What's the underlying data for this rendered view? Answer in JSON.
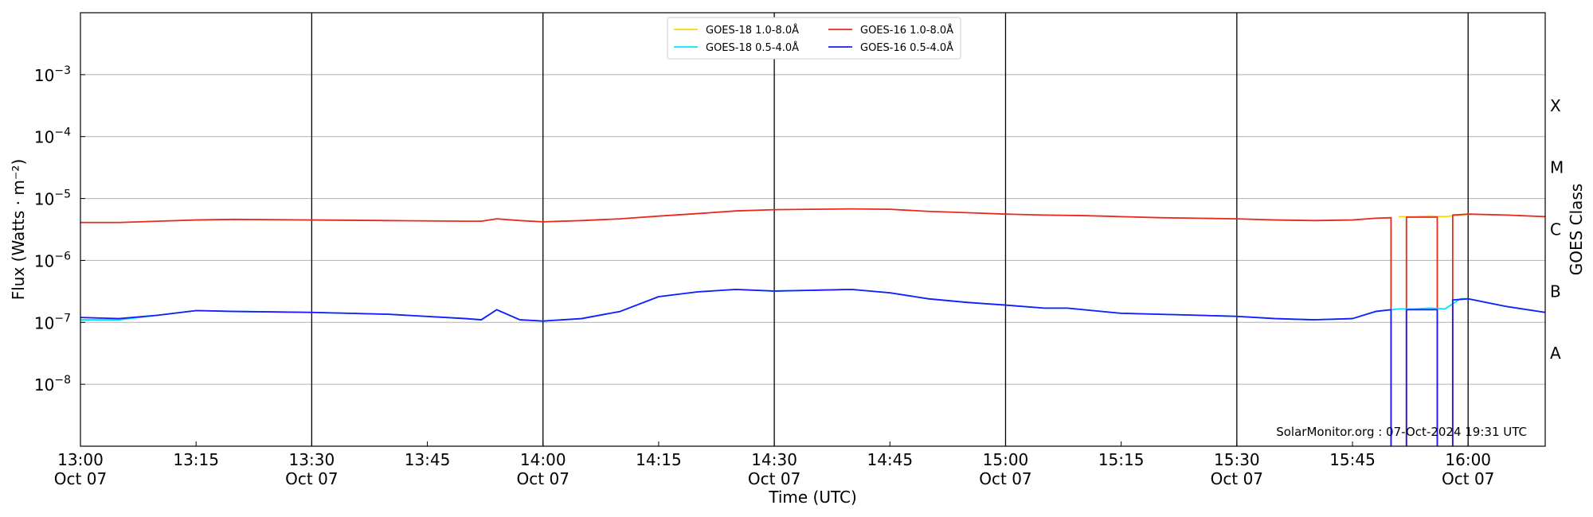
{
  "chart_data": {
    "type": "line",
    "xlabel": "Time (UTC)",
    "ylabel": "Flux (Watts · m⁻²)",
    "y2label": "GOES Class",
    "credit": "SolarMonitor.org : 07-Oct-2024 19:31 UTC",
    "y_scale": "log",
    "ylim": [
      1e-09,
      0.01
    ],
    "xlim": [
      "13:00",
      "16:10"
    ],
    "grid": "horizontal",
    "legend_position": "top-center",
    "x_ticks": [
      {
        "time": "13:00",
        "line1": "13:00",
        "line2": "Oct 07"
      },
      {
        "time": "13:15",
        "line1": "13:15",
        "line2": ""
      },
      {
        "time": "13:30",
        "line1": "13:30",
        "line2": "Oct 07"
      },
      {
        "time": "13:45",
        "line1": "13:45",
        "line2": ""
      },
      {
        "time": "14:00",
        "line1": "14:00",
        "line2": "Oct 07"
      },
      {
        "time": "14:15",
        "line1": "14:15",
        "line2": ""
      },
      {
        "time": "14:30",
        "line1": "14:30",
        "line2": "Oct 07"
      },
      {
        "time": "14:45",
        "line1": "14:45",
        "line2": ""
      },
      {
        "time": "15:00",
        "line1": "15:00",
        "line2": "Oct 07"
      },
      {
        "time": "15:15",
        "line1": "15:15",
        "line2": ""
      },
      {
        "time": "15:30",
        "line1": "15:30",
        "line2": "Oct 07"
      },
      {
        "time": "15:45",
        "line1": "15:45",
        "line2": ""
      },
      {
        "time": "16:00",
        "line1": "16:00",
        "line2": "Oct 07"
      }
    ],
    "vertical_lines": [
      "13:30",
      "14:00",
      "14:30",
      "15:00",
      "15:30",
      "16:00"
    ],
    "y_ticks": [
      {
        "exp": -8,
        "label": "10",
        "sup": "−8"
      },
      {
        "exp": -7,
        "label": "10",
        "sup": "−7"
      },
      {
        "exp": -6,
        "label": "10",
        "sup": "−6"
      },
      {
        "exp": -5,
        "label": "10",
        "sup": "−5"
      },
      {
        "exp": -4,
        "label": "10",
        "sup": "−4"
      },
      {
        "exp": -3,
        "label": "10",
        "sup": "−3"
      }
    ],
    "goes_classes": [
      {
        "label": "A",
        "exp": -7.5
      },
      {
        "label": "B",
        "exp": -6.5
      },
      {
        "label": "C",
        "exp": -5.5
      },
      {
        "label": "M",
        "exp": -4.5
      },
      {
        "label": "X",
        "exp": -3.5
      }
    ],
    "series": [
      {
        "name": "GOES-18 1.0-8.0Å",
        "color": "#ffd700",
        "x": [
          "15:51",
          "15:53",
          "15:55",
          "15:57",
          "15:59",
          "16:00"
        ],
        "values": [
          5.1e-06,
          5.1e-06,
          5.2e-06,
          5.1e-06,
          5.4e-06,
          5.6e-06
        ]
      },
      {
        "name": "GOES-16 1.0-8.0Å",
        "color": "#e8291c",
        "x": [
          "13:00",
          "13:05",
          "13:10",
          "13:15",
          "13:20",
          "13:30",
          "13:40",
          "13:50",
          "13:52",
          "13:54",
          "13:57",
          "14:00",
          "14:05",
          "14:10",
          "14:15",
          "14:20",
          "14:25",
          "14:30",
          "14:35",
          "14:40",
          "14:45",
          "14:50",
          "14:55",
          "15:00",
          "15:05",
          "15:10",
          "15:15",
          "15:20",
          "15:25",
          "15:30",
          "15:35",
          "15:40",
          "15:45",
          "15:48",
          "15:50",
          "15:50",
          "15:50",
          "15:52",
          "15:52",
          "15:52",
          "15:54",
          "15:56",
          "15:56",
          "15:56",
          "15:58",
          "15:58",
          "15:58",
          "16:00",
          "16:05",
          "16:10"
        ],
        "values": [
          4.1e-06,
          4.1e-06,
          4.3e-06,
          4.5e-06,
          4.6e-06,
          4.5e-06,
          4.4e-06,
          4.3e-06,
          4.3e-06,
          4.7e-06,
          4.4e-06,
          4.2e-06,
          4.4e-06,
          4.7e-06,
          5.2e-06,
          5.7e-06,
          6.3e-06,
          6.6e-06,
          6.7e-06,
          6.8e-06,
          6.7e-06,
          6.2e-06,
          5.9e-06,
          5.6e-06,
          5.4e-06,
          5.3e-06,
          5.1e-06,
          4.9e-06,
          4.8e-06,
          4.7e-06,
          4.5e-06,
          4.4e-06,
          4.5e-06,
          4.8e-06,
          4.9e-06,
          1e-09,
          null,
          null,
          1e-09,
          5e-06,
          5e-06,
          5e-06,
          1e-09,
          null,
          null,
          1e-09,
          5.4e-06,
          5.6e-06,
          5.4e-06,
          5.1e-06
        ]
      },
      {
        "name": "GOES-18 0.5-4.0Å",
        "color": "#00e5ff",
        "x": [
          "13:00",
          "13:05",
          "13:10",
          "13:15",
          "13:20",
          "13:30",
          "13:40",
          "13:50",
          "13:52",
          "13:54",
          "13:57",
          "14:00",
          "14:05",
          "14:10",
          "14:15",
          "14:20",
          "14:25",
          "14:30",
          "14:35",
          "14:40",
          "14:45",
          "14:50",
          "14:55",
          "15:00",
          "15:05",
          "15:08",
          "15:15",
          "15:20",
          "15:25",
          "15:30",
          "15:35",
          "15:40",
          "15:45",
          "15:48",
          "15:51",
          "15:53",
          "15:55",
          "15:57",
          "15:59",
          "16:00",
          "16:05",
          "16:10"
        ],
        "values": [
          1.1e-07,
          1.1e-07,
          1.3e-07,
          1.55e-07,
          1.5e-07,
          1.45e-07,
          1.35e-07,
          1.15e-07,
          1.1e-07,
          1.6e-07,
          1.1e-07,
          1.05e-07,
          1.15e-07,
          1.5e-07,
          2.6e-07,
          3.1e-07,
          3.4e-07,
          3.2e-07,
          3.3e-07,
          3.4e-07,
          3e-07,
          2.4e-07,
          2.1e-07,
          1.9e-07,
          1.7e-07,
          1.7e-07,
          1.4e-07,
          1.35e-07,
          1.3e-07,
          1.25e-07,
          1.15e-07,
          1.1e-07,
          1.15e-07,
          1.5e-07,
          1.65e-07,
          1.65e-07,
          1.7e-07,
          1.65e-07,
          2.4e-07,
          2.4e-07,
          1.8e-07,
          1.45e-07
        ]
      },
      {
        "name": "GOES-16 0.5-4.0Å",
        "color": "#1a1aff",
        "x": [
          "13:00",
          "13:05",
          "13:10",
          "13:15",
          "13:20",
          "13:30",
          "13:40",
          "13:50",
          "13:52",
          "13:54",
          "13:57",
          "14:00",
          "14:05",
          "14:10",
          "14:15",
          "14:20",
          "14:25",
          "14:30",
          "14:35",
          "14:40",
          "14:45",
          "14:50",
          "14:55",
          "15:00",
          "15:05",
          "15:08",
          "15:15",
          "15:20",
          "15:25",
          "15:30",
          "15:35",
          "15:40",
          "15:45",
          "15:48",
          "15:50",
          "15:50",
          "15:50",
          "15:52",
          "15:52",
          "15:52",
          "15:54",
          "15:56",
          "15:56",
          "15:56",
          "15:58",
          "15:58",
          "15:58",
          "16:00",
          "16:05",
          "16:10"
        ],
        "values": [
          1.2e-07,
          1.15e-07,
          1.3e-07,
          1.55e-07,
          1.5e-07,
          1.45e-07,
          1.35e-07,
          1.15e-07,
          1.1e-07,
          1.6e-07,
          1.1e-07,
          1.05e-07,
          1.15e-07,
          1.5e-07,
          2.6e-07,
          3.1e-07,
          3.4e-07,
          3.2e-07,
          3.3e-07,
          3.4e-07,
          3e-07,
          2.4e-07,
          2.1e-07,
          1.9e-07,
          1.7e-07,
          1.7e-07,
          1.4e-07,
          1.35e-07,
          1.3e-07,
          1.25e-07,
          1.15e-07,
          1.1e-07,
          1.15e-07,
          1.5e-07,
          1.6e-07,
          1e-09,
          null,
          null,
          1e-09,
          1.6e-07,
          1.6e-07,
          1.6e-07,
          1e-09,
          null,
          null,
          1e-09,
          2.3e-07,
          2.4e-07,
          1.8e-07,
          1.45e-07
        ]
      }
    ]
  }
}
